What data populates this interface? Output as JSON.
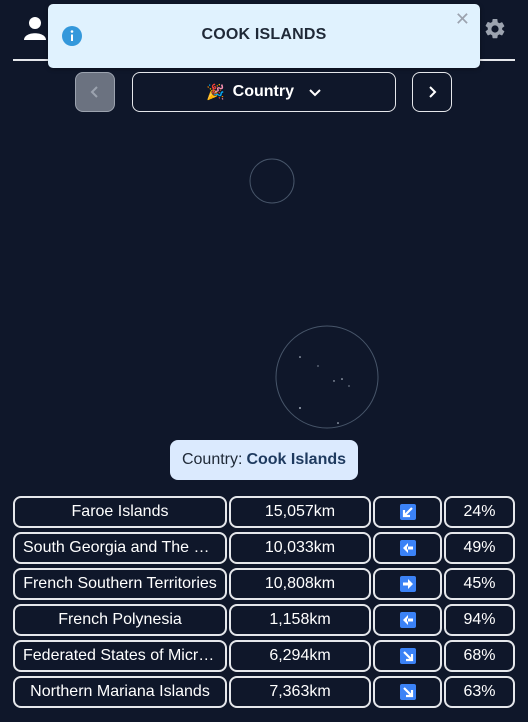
{
  "toast": {
    "message": "COOK ISLANDS"
  },
  "mode": {
    "label": "Country"
  },
  "answer": {
    "prefix": "Country:",
    "value": "Cook Islands"
  },
  "guesses": [
    {
      "name": "Faroe Islands",
      "distance": "15,057km",
      "direction": "south-west",
      "percent": "24%"
    },
    {
      "name": "South Georgia and The S...",
      "distance": "10,033km",
      "direction": "west",
      "percent": "49%"
    },
    {
      "name": "French Southern Territories",
      "distance": "10,808km",
      "direction": "east",
      "percent": "45%"
    },
    {
      "name": "French Polynesia",
      "distance": "1,158km",
      "direction": "west",
      "percent": "94%"
    },
    {
      "name": "Federated States of Micro...",
      "distance": "6,294km",
      "direction": "south-east",
      "percent": "68%"
    },
    {
      "name": "Northern Mariana Islands",
      "distance": "7,363km",
      "direction": "south-east",
      "percent": "63%"
    }
  ],
  "icons": {
    "user": "user-icon",
    "settings": "gear-icon",
    "info": "info-icon",
    "close": "close-icon",
    "prev": "chevron-left-icon",
    "next": "chevron-right-icon",
    "dropdown": "chevron-down-icon",
    "mode": "party-popper-icon"
  },
  "colors": {
    "background": "#0f172a",
    "toast": "#e0f2fe",
    "answer": "#dbeafe",
    "arrow": "#3b82f6"
  }
}
